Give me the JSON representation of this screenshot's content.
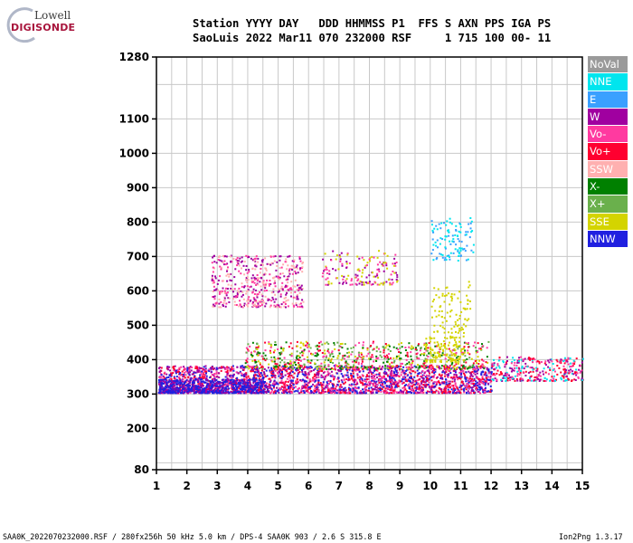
{
  "logo": {
    "lowell": "Lowell",
    "digisonde": "DIGISONDE"
  },
  "header": {
    "line1": "Station YYYY DAY   DDD HHMMSS P1  FFS S AXN PPS IGA PS",
    "line2": "SaoLuis 2022 Mar11 070 232000 RSF     1 715 100 00- 11"
  },
  "legend": [
    {
      "label": "NoVal",
      "color": "#9a9a9a"
    },
    {
      "label": "NNE",
      "color": "#00e5ee"
    },
    {
      "label": "E",
      "color": "#3aa0ff"
    },
    {
      "label": "W",
      "color": "#a000a0"
    },
    {
      "label": "Vo-",
      "color": "#ff3aa0"
    },
    {
      "label": "Vo+",
      "color": "#ff0030"
    },
    {
      "label": "SSW",
      "color": "#ffb0b0"
    },
    {
      "label": "X-",
      "color": "#008000"
    },
    {
      "label": "X+",
      "color": "#6ab04c"
    },
    {
      "label": "SSE",
      "color": "#d4d400"
    },
    {
      "label": "NNW",
      "color": "#2020e0"
    }
  ],
  "footer": {
    "left": "SAA0K_2022070232000.RSF / 280fx256h 50 kHz 5.0 km / DPS-4 SAA0K 903 / 2.6 S 315.8 E",
    "right": "Ion2Png 1.3.17"
  },
  "chart_data": {
    "type": "scatter",
    "x_ticks": [
      1,
      2,
      3,
      4,
      5,
      6,
      7,
      8,
      9,
      10,
      11,
      12,
      13,
      14,
      15
    ],
    "y_ticks": [
      80,
      200,
      300,
      400,
      500,
      600,
      700,
      800,
      900,
      1000,
      1100,
      1280
    ],
    "xlim": [
      1,
      15
    ],
    "ylim": [
      80,
      1280
    ],
    "grid": true,
    "clusters": [
      {
        "x": [
          1.05,
          12.0
        ],
        "y": [
          305,
          385
        ],
        "colors": [
          "#ff0030",
          "#ff3aa0",
          "#a000a0",
          "#2020e0"
        ],
        "n": 2600
      },
      {
        "x": [
          1.05,
          4.5
        ],
        "y": [
          305,
          345
        ],
        "colors": [
          "#2020e0",
          "#a000a0",
          "#2020e0"
        ],
        "n": 600
      },
      {
        "x": [
          3.9,
          11.9
        ],
        "y": [
          375,
          455
        ],
        "colors": [
          "#ff3aa0",
          "#008000",
          "#ff0030",
          "#d4d400",
          "#6ab04c"
        ],
        "n": 700
      },
      {
        "x": [
          2.8,
          5.8
        ],
        "y": [
          555,
          705
        ],
        "colors": [
          "#a000a0",
          "#ff3aa0",
          "#ffb0b0"
        ],
        "n": 500
      },
      {
        "x": [
          6.4,
          8.9
        ],
        "y": [
          620,
          720
        ],
        "colors": [
          "#ff3aa0",
          "#a000a0",
          "#d4d400"
        ],
        "n": 160
      },
      {
        "x": [
          12.0,
          15.0
        ],
        "y": [
          340,
          410
        ],
        "colors": [
          "#ff3aa0",
          "#ff0030",
          "#a000a0",
          "#00e5ee"
        ],
        "n": 320
      },
      {
        "x": [
          10.0,
          11.4
        ],
        "y": [
          690,
          815
        ],
        "colors": [
          "#00e5ee",
          "#3aa0ff"
        ],
        "n": 110
      },
      {
        "x": [
          10.0,
          11.3
        ],
        "y": [
          480,
          630
        ],
        "colors": [
          "#d4d400"
        ],
        "n": 90
      },
      {
        "x": [
          9.8,
          11.1
        ],
        "y": [
          395,
          470
        ],
        "colors": [
          "#d4d400"
        ],
        "n": 120
      }
    ]
  }
}
